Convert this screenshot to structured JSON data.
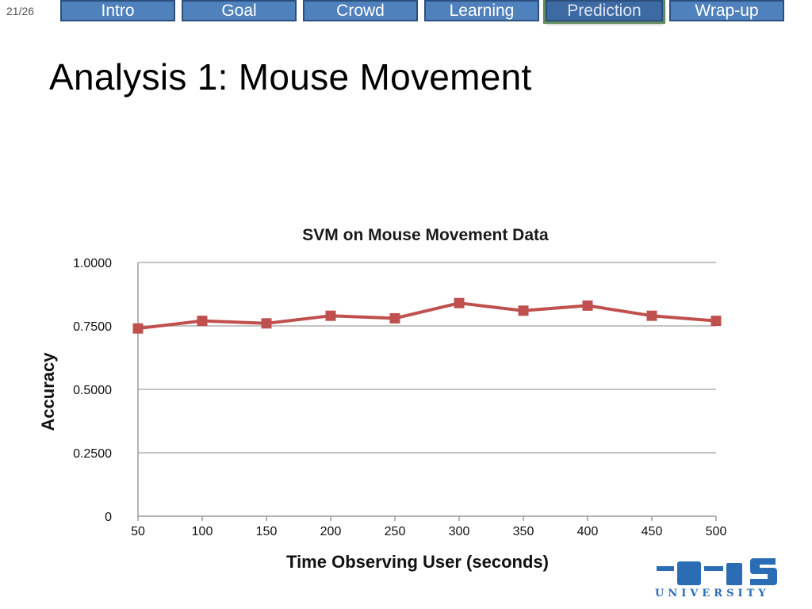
{
  "slide_counter": "21/26",
  "nav": {
    "tabs": [
      {
        "label": "Intro",
        "active": false
      },
      {
        "label": "Goal",
        "active": false
      },
      {
        "label": "Crowd",
        "active": false
      },
      {
        "label": "Learning",
        "active": false
      },
      {
        "label": "Prediction",
        "active": true
      },
      {
        "label": "Wrap-up",
        "active": false
      }
    ]
  },
  "title": "Analysis 1: Mouse Movement",
  "logo": {
    "word": "UNIVERSITY",
    "color": "#2a6db5"
  },
  "chart_data": {
    "type": "line",
    "title": "SVM on Mouse Movement Data",
    "xlabel": "Time Observing User (seconds)",
    "ylabel": "Accuracy",
    "x": [
      50,
      100,
      150,
      200,
      250,
      300,
      350,
      400,
      450,
      500
    ],
    "y_ticks": [
      "0",
      "0.2500",
      "0.5000",
      "0.7500",
      "1.0000"
    ],
    "y_tick_values": [
      0,
      0.25,
      0.5,
      0.75,
      1.0
    ],
    "ylim": [
      0,
      1
    ],
    "grid": true,
    "series_color": "#c0504d",
    "series": [
      {
        "values": [
          0.74,
          0.77,
          0.76,
          0.79,
          0.78,
          0.84,
          0.81,
          0.83,
          0.79,
          0.77
        ]
      }
    ]
  }
}
